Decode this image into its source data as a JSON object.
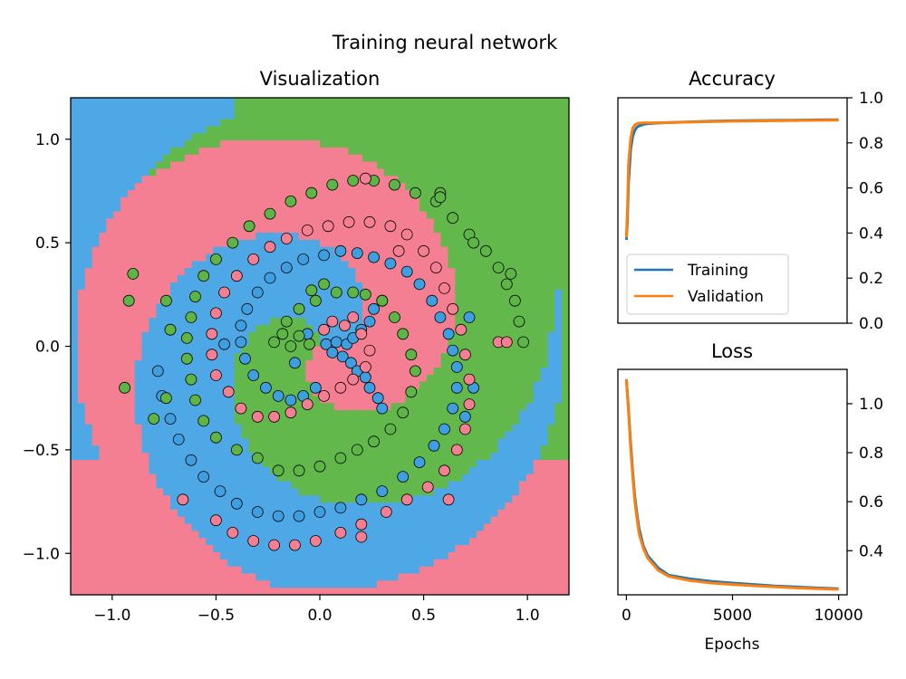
{
  "figure": {
    "title": "Training neural network",
    "background": "#ffffff"
  },
  "chart_data": [
    {
      "id": "visualization",
      "type": "scatter",
      "title": "Visualization",
      "xlabel": "",
      "ylabel": "",
      "xlim": [
        -1.2,
        1.2
      ],
      "ylim": [
        -1.2,
        1.2
      ],
      "xticks": [
        -1.0,
        -0.5,
        0.0,
        0.5,
        1.0
      ],
      "xtick_labels": [
        "−1.0",
        "−0.5",
        "0.0",
        "0.5",
        "1.0"
      ],
      "yticks": [
        -1.0,
        -0.5,
        0.0,
        0.5,
        1.0
      ],
      "ytick_labels": [
        "−1.0",
        "−0.5",
        "0.0",
        "0.5",
        "1.0"
      ],
      "grid": false,
      "background_regions": "three-class decision boundary (blue / green / pink spiral arms)",
      "class_colors": {
        "blue": "#4ea8e6",
        "green": "#62b84a",
        "pink": "#f57f92"
      },
      "series": [
        {
          "class": "blue",
          "color": "#3d9fe0",
          "points": [
            [
              0.03,
              0.01
            ],
            [
              0.06,
              -0.03
            ],
            [
              0.08,
              0.02
            ],
            [
              0.11,
              -0.05
            ],
            [
              0.13,
              0.01
            ],
            [
              0.15,
              -0.08
            ],
            [
              0.16,
              0.04
            ],
            [
              0.18,
              -0.12
            ],
            [
              0.2,
              0.08
            ],
            [
              0.22,
              -0.15
            ],
            [
              0.24,
              0.12
            ],
            [
              0.24,
              -0.2
            ],
            [
              0.26,
              0.18
            ],
            [
              0.28,
              -0.25
            ],
            [
              0.3,
              0.22
            ],
            [
              0.3,
              -0.3
            ],
            [
              -0.02,
              -0.2
            ],
            [
              -0.08,
              -0.24
            ],
            [
              -0.14,
              -0.26
            ],
            [
              -0.2,
              -0.24
            ],
            [
              -0.26,
              -0.2
            ],
            [
              -0.32,
              -0.14
            ],
            [
              -0.36,
              -0.06
            ],
            [
              -0.38,
              0.02
            ],
            [
              -0.38,
              0.1
            ],
            [
              -0.35,
              0.18
            ],
            [
              -0.3,
              0.26
            ],
            [
              -0.24,
              0.33
            ],
            [
              -0.16,
              0.38
            ],
            [
              -0.08,
              0.42
            ],
            [
              0.02,
              0.44
            ],
            [
              0.1,
              0.46
            ],
            [
              0.18,
              0.45
            ],
            [
              0.26,
              0.43
            ],
            [
              0.34,
              0.4
            ],
            [
              0.42,
              0.36
            ],
            [
              0.48,
              0.3
            ],
            [
              0.54,
              0.22
            ],
            [
              0.58,
              0.14
            ],
            [
              0.62,
              0.06
            ],
            [
              0.64,
              -0.02
            ],
            [
              0.66,
              -0.1
            ],
            [
              0.66,
              -0.2
            ],
            [
              0.64,
              -0.3
            ],
            [
              0.6,
              -0.4
            ],
            [
              0.55,
              -0.48
            ],
            [
              0.48,
              -0.56
            ],
            [
              0.4,
              -0.63
            ],
            [
              0.3,
              -0.7
            ],
            [
              0.2,
              -0.74
            ],
            [
              0.1,
              -0.78
            ],
            [
              0.0,
              -0.8
            ],
            [
              -0.1,
              -0.82
            ],
            [
              -0.2,
              -0.82
            ],
            [
              -0.3,
              -0.8
            ],
            [
              -0.4,
              -0.76
            ],
            [
              -0.48,
              -0.7
            ],
            [
              -0.56,
              -0.63
            ],
            [
              -0.62,
              -0.55
            ],
            [
              -0.68,
              -0.45
            ],
            [
              -0.72,
              -0.35
            ],
            [
              -0.76,
              -0.24
            ],
            [
              -0.78,
              -0.12
            ],
            [
              -0.46,
              0.01
            ],
            [
              -0.12,
              -0.08
            ],
            [
              -0.06,
              0.06
            ],
            [
              0.72,
              0.14
            ],
            [
              0.74,
              -0.2
            ],
            [
              0.7,
              -0.34
            ]
          ]
        },
        {
          "class": "green",
          "color": "#5cb544",
          "points": [
            [
              -0.05,
              0.01
            ],
            [
              -0.1,
              0.05
            ],
            [
              -0.14,
              0.0
            ],
            [
              -0.18,
              0.06
            ],
            [
              -0.22,
              0.02
            ],
            [
              -0.16,
              0.12
            ],
            [
              -0.1,
              0.18
            ],
            [
              -0.02,
              0.22
            ],
            [
              -0.04,
              0.27
            ],
            [
              0.02,
              0.3
            ],
            [
              0.08,
              0.26
            ],
            [
              0.16,
              0.26
            ],
            [
              0.22,
              0.25
            ],
            [
              0.3,
              0.22
            ],
            [
              0.36,
              0.14
            ],
            [
              0.4,
              0.06
            ],
            [
              0.44,
              -0.04
            ],
            [
              0.46,
              -0.12
            ],
            [
              0.44,
              -0.22
            ],
            [
              0.4,
              -0.32
            ],
            [
              0.34,
              -0.4
            ],
            [
              0.26,
              -0.46
            ],
            [
              0.18,
              -0.5
            ],
            [
              0.1,
              -0.54
            ],
            [
              0.0,
              -0.58
            ],
            [
              -0.1,
              -0.6
            ],
            [
              -0.2,
              -0.6
            ],
            [
              -0.3,
              -0.54
            ],
            [
              -0.4,
              -0.5
            ],
            [
              -0.5,
              -0.44
            ],
            [
              -0.56,
              -0.36
            ],
            [
              -0.6,
              -0.26
            ],
            [
              -0.62,
              -0.16
            ],
            [
              -0.64,
              -0.06
            ],
            [
              -0.64,
              0.04
            ],
            [
              -0.62,
              0.14
            ],
            [
              -0.6,
              0.24
            ],
            [
              -0.56,
              0.34
            ],
            [
              -0.5,
              0.42
            ],
            [
              -0.42,
              0.5
            ],
            [
              -0.34,
              0.58
            ],
            [
              -0.24,
              0.64
            ],
            [
              -0.14,
              0.7
            ],
            [
              -0.04,
              0.74
            ],
            [
              0.06,
              0.78
            ],
            [
              0.16,
              0.8
            ],
            [
              0.26,
              0.8
            ],
            [
              0.36,
              0.78
            ],
            [
              0.46,
              0.74
            ],
            [
              0.56,
              0.7
            ],
            [
              0.64,
              0.62
            ],
            [
              0.72,
              0.54
            ],
            [
              0.8,
              0.46
            ],
            [
              0.86,
              0.38
            ],
            [
              0.9,
              0.3
            ],
            [
              0.94,
              0.22
            ],
            [
              0.96,
              0.12
            ],
            [
              0.98,
              0.02
            ],
            [
              -0.9,
              0.35
            ],
            [
              -0.92,
              0.22
            ],
            [
              -0.74,
              0.22
            ],
            [
              -0.72,
              0.08
            ],
            [
              -0.74,
              -0.25
            ],
            [
              -0.8,
              -0.35
            ],
            [
              -0.94,
              -0.2
            ],
            [
              0.58,
              0.74
            ],
            [
              0.58,
              0.72
            ],
            [
              0.74,
              0.5
            ],
            [
              0.92,
              0.35
            ]
          ]
        },
        {
          "class": "pink",
          "color": "#f57f92",
          "points": [
            [
              0.02,
              0.08
            ],
            [
              0.06,
              0.12
            ],
            [
              0.12,
              0.1
            ],
            [
              0.16,
              0.14
            ],
            [
              0.2,
              0.06
            ],
            [
              0.24,
              -0.02
            ],
            [
              0.22,
              -0.1
            ],
            [
              0.16,
              -0.16
            ],
            [
              0.1,
              -0.2
            ],
            [
              0.02,
              -0.24
            ],
            [
              -0.06,
              -0.28
            ],
            [
              -0.14,
              -0.32
            ],
            [
              -0.22,
              -0.34
            ],
            [
              -0.3,
              -0.34
            ],
            [
              -0.38,
              -0.3
            ],
            [
              -0.44,
              -0.22
            ],
            [
              -0.5,
              -0.14
            ],
            [
              -0.52,
              -0.04
            ],
            [
              -0.52,
              0.06
            ],
            [
              -0.5,
              0.16
            ],
            [
              -0.46,
              0.26
            ],
            [
              -0.4,
              0.34
            ],
            [
              -0.32,
              0.42
            ],
            [
              -0.24,
              0.48
            ],
            [
              -0.16,
              0.52
            ],
            [
              -0.06,
              0.56
            ],
            [
              0.04,
              0.58
            ],
            [
              0.14,
              0.6
            ],
            [
              0.24,
              0.6
            ],
            [
              0.34,
              0.58
            ],
            [
              0.42,
              0.54
            ],
            [
              0.5,
              0.46
            ],
            [
              0.56,
              0.38
            ],
            [
              0.6,
              0.28
            ],
            [
              0.64,
              0.18
            ],
            [
              0.68,
              0.08
            ],
            [
              0.7,
              -0.04
            ],
            [
              0.72,
              -0.16
            ],
            [
              0.72,
              -0.28
            ],
            [
              0.7,
              -0.4
            ],
            [
              0.66,
              -0.5
            ],
            [
              0.6,
              -0.6
            ],
            [
              0.52,
              -0.68
            ],
            [
              0.42,
              -0.74
            ],
            [
              0.32,
              -0.8
            ],
            [
              0.2,
              -0.86
            ],
            [
              0.1,
              -0.9
            ],
            [
              -0.02,
              -0.94
            ],
            [
              -0.12,
              -0.96
            ],
            [
              -0.22,
              -0.96
            ],
            [
              -0.32,
              -0.94
            ],
            [
              -0.42,
              -0.9
            ],
            [
              -0.5,
              -0.84
            ],
            [
              -0.66,
              -0.74
            ],
            [
              0.22,
              0.81
            ],
            [
              0.38,
              0.46
            ],
            [
              0.86,
              0.02
            ],
            [
              0.9,
              0.02
            ],
            [
              0.2,
              -0.92
            ],
            [
              0.62,
              -0.74
            ]
          ]
        }
      ]
    },
    {
      "id": "accuracy",
      "type": "line",
      "title": "Accuracy",
      "xlabel": "",
      "ylabel": "",
      "xlim": [
        -400,
        10400
      ],
      "ylim": [
        0.0,
        1.0
      ],
      "yticks": [
        0.0,
        0.2,
        0.4,
        0.6,
        0.8,
        1.0
      ],
      "ytick_labels": [
        "0.0",
        "0.2",
        "0.4",
        "0.6",
        "0.8",
        "1.0"
      ],
      "y_axis_side": "right",
      "legend": {
        "placement": "lower-left",
        "entries": [
          "Training",
          "Validation"
        ]
      },
      "series": [
        {
          "name": "Training",
          "color": "#1f77b4",
          "x": [
            0,
            50,
            100,
            200,
            300,
            400,
            500,
            600,
            700,
            800,
            1000,
            1500,
            2000,
            3000,
            4000,
            5000,
            6000,
            7000,
            8000,
            9000,
            10000
          ],
          "y": [
            0.37,
            0.45,
            0.62,
            0.77,
            0.83,
            0.855,
            0.87,
            0.875,
            0.878,
            0.882,
            0.885,
            0.888,
            0.89,
            0.893,
            0.896,
            0.898,
            0.899,
            0.9,
            0.901,
            0.902,
            0.903
          ]
        },
        {
          "name": "Validation",
          "color": "#ff7f0e",
          "x": [
            0,
            50,
            100,
            200,
            300,
            400,
            500,
            600,
            700,
            800,
            1000,
            1500,
            2000,
            3000,
            4000,
            5000,
            6000,
            7000,
            8000,
            9000,
            10000
          ],
          "y": [
            0.38,
            0.5,
            0.7,
            0.82,
            0.865,
            0.88,
            0.885,
            0.887,
            0.888,
            0.889,
            0.889,
            0.889,
            0.89,
            0.892,
            0.894,
            0.896,
            0.897,
            0.898,
            0.899,
            0.9,
            0.901
          ]
        }
      ]
    },
    {
      "id": "loss",
      "type": "line",
      "title": "Loss",
      "xlabel": "Epochs",
      "ylabel": "",
      "xlim": [
        -400,
        10400
      ],
      "ylim": [
        0.22,
        1.14
      ],
      "xticks": [
        0,
        5000,
        10000
      ],
      "xtick_labels": [
        "0",
        "5000",
        "10000"
      ],
      "yticks": [
        0.4,
        0.6,
        0.8,
        1.0
      ],
      "ytick_labels": [
        "0.4",
        "0.6",
        "0.8",
        "1.0"
      ],
      "y_axis_side": "right",
      "series": [
        {
          "name": "Training",
          "color": "#1f77b4",
          "x": [
            0,
            100,
            200,
            300,
            400,
            500,
            600,
            800,
            1000,
            1500,
            2000,
            3000,
            4000,
            5000,
            6000,
            7000,
            8000,
            9000,
            10000
          ],
          "y": [
            1.1,
            0.98,
            0.84,
            0.72,
            0.62,
            0.55,
            0.49,
            0.42,
            0.38,
            0.33,
            0.3,
            0.285,
            0.275,
            0.268,
            0.262,
            0.256,
            0.252,
            0.248,
            0.245
          ]
        },
        {
          "name": "Validation",
          "color": "#ff7f0e",
          "x": [
            0,
            100,
            200,
            300,
            400,
            500,
            600,
            800,
            1000,
            1500,
            2000,
            3000,
            4000,
            5000,
            6000,
            7000,
            8000,
            9000,
            10000
          ],
          "y": [
            1.1,
            0.97,
            0.82,
            0.7,
            0.6,
            0.53,
            0.47,
            0.41,
            0.37,
            0.32,
            0.295,
            0.278,
            0.268,
            0.262,
            0.257,
            0.252,
            0.248,
            0.245,
            0.242
          ]
        }
      ]
    }
  ]
}
